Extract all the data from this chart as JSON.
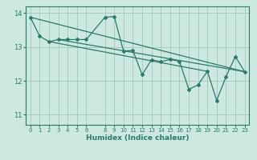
{
  "xlabel": "Humidex (Indice chaleur)",
  "xlim": [
    -0.5,
    23.5
  ],
  "ylim": [
    10.7,
    14.2
  ],
  "yticks": [
    11,
    12,
    13,
    14
  ],
  "xticks": [
    0,
    1,
    2,
    3,
    4,
    5,
    6,
    8,
    9,
    10,
    11,
    12,
    13,
    14,
    15,
    16,
    17,
    18,
    19,
    20,
    21,
    22,
    23
  ],
  "background_color": "#cce8e0",
  "grid_color": "#a0c8be",
  "line_color": "#2a7a6a",
  "series": [
    {
      "x": [
        0,
        1,
        2,
        3,
        4,
        5,
        6,
        8,
        9,
        10,
        11,
        12,
        13,
        14,
        15,
        16,
        17,
        18,
        19,
        20,
        21,
        22,
        23
      ],
      "y": [
        13.88,
        13.32,
        13.16,
        13.22,
        13.22,
        13.22,
        13.22,
        13.88,
        13.9,
        12.88,
        12.9,
        12.18,
        12.62,
        12.57,
        12.63,
        12.58,
        11.75,
        11.88,
        12.28,
        11.42,
        12.12,
        12.72,
        12.27
      ]
    },
    {
      "x": [
        0,
        23
      ],
      "y": [
        13.88,
        12.27
      ]
    },
    {
      "x": [
        2,
        19
      ],
      "y": [
        13.16,
        12.28
      ]
    },
    {
      "x": [
        3,
        23
      ],
      "y": [
        13.22,
        12.27
      ]
    }
  ]
}
